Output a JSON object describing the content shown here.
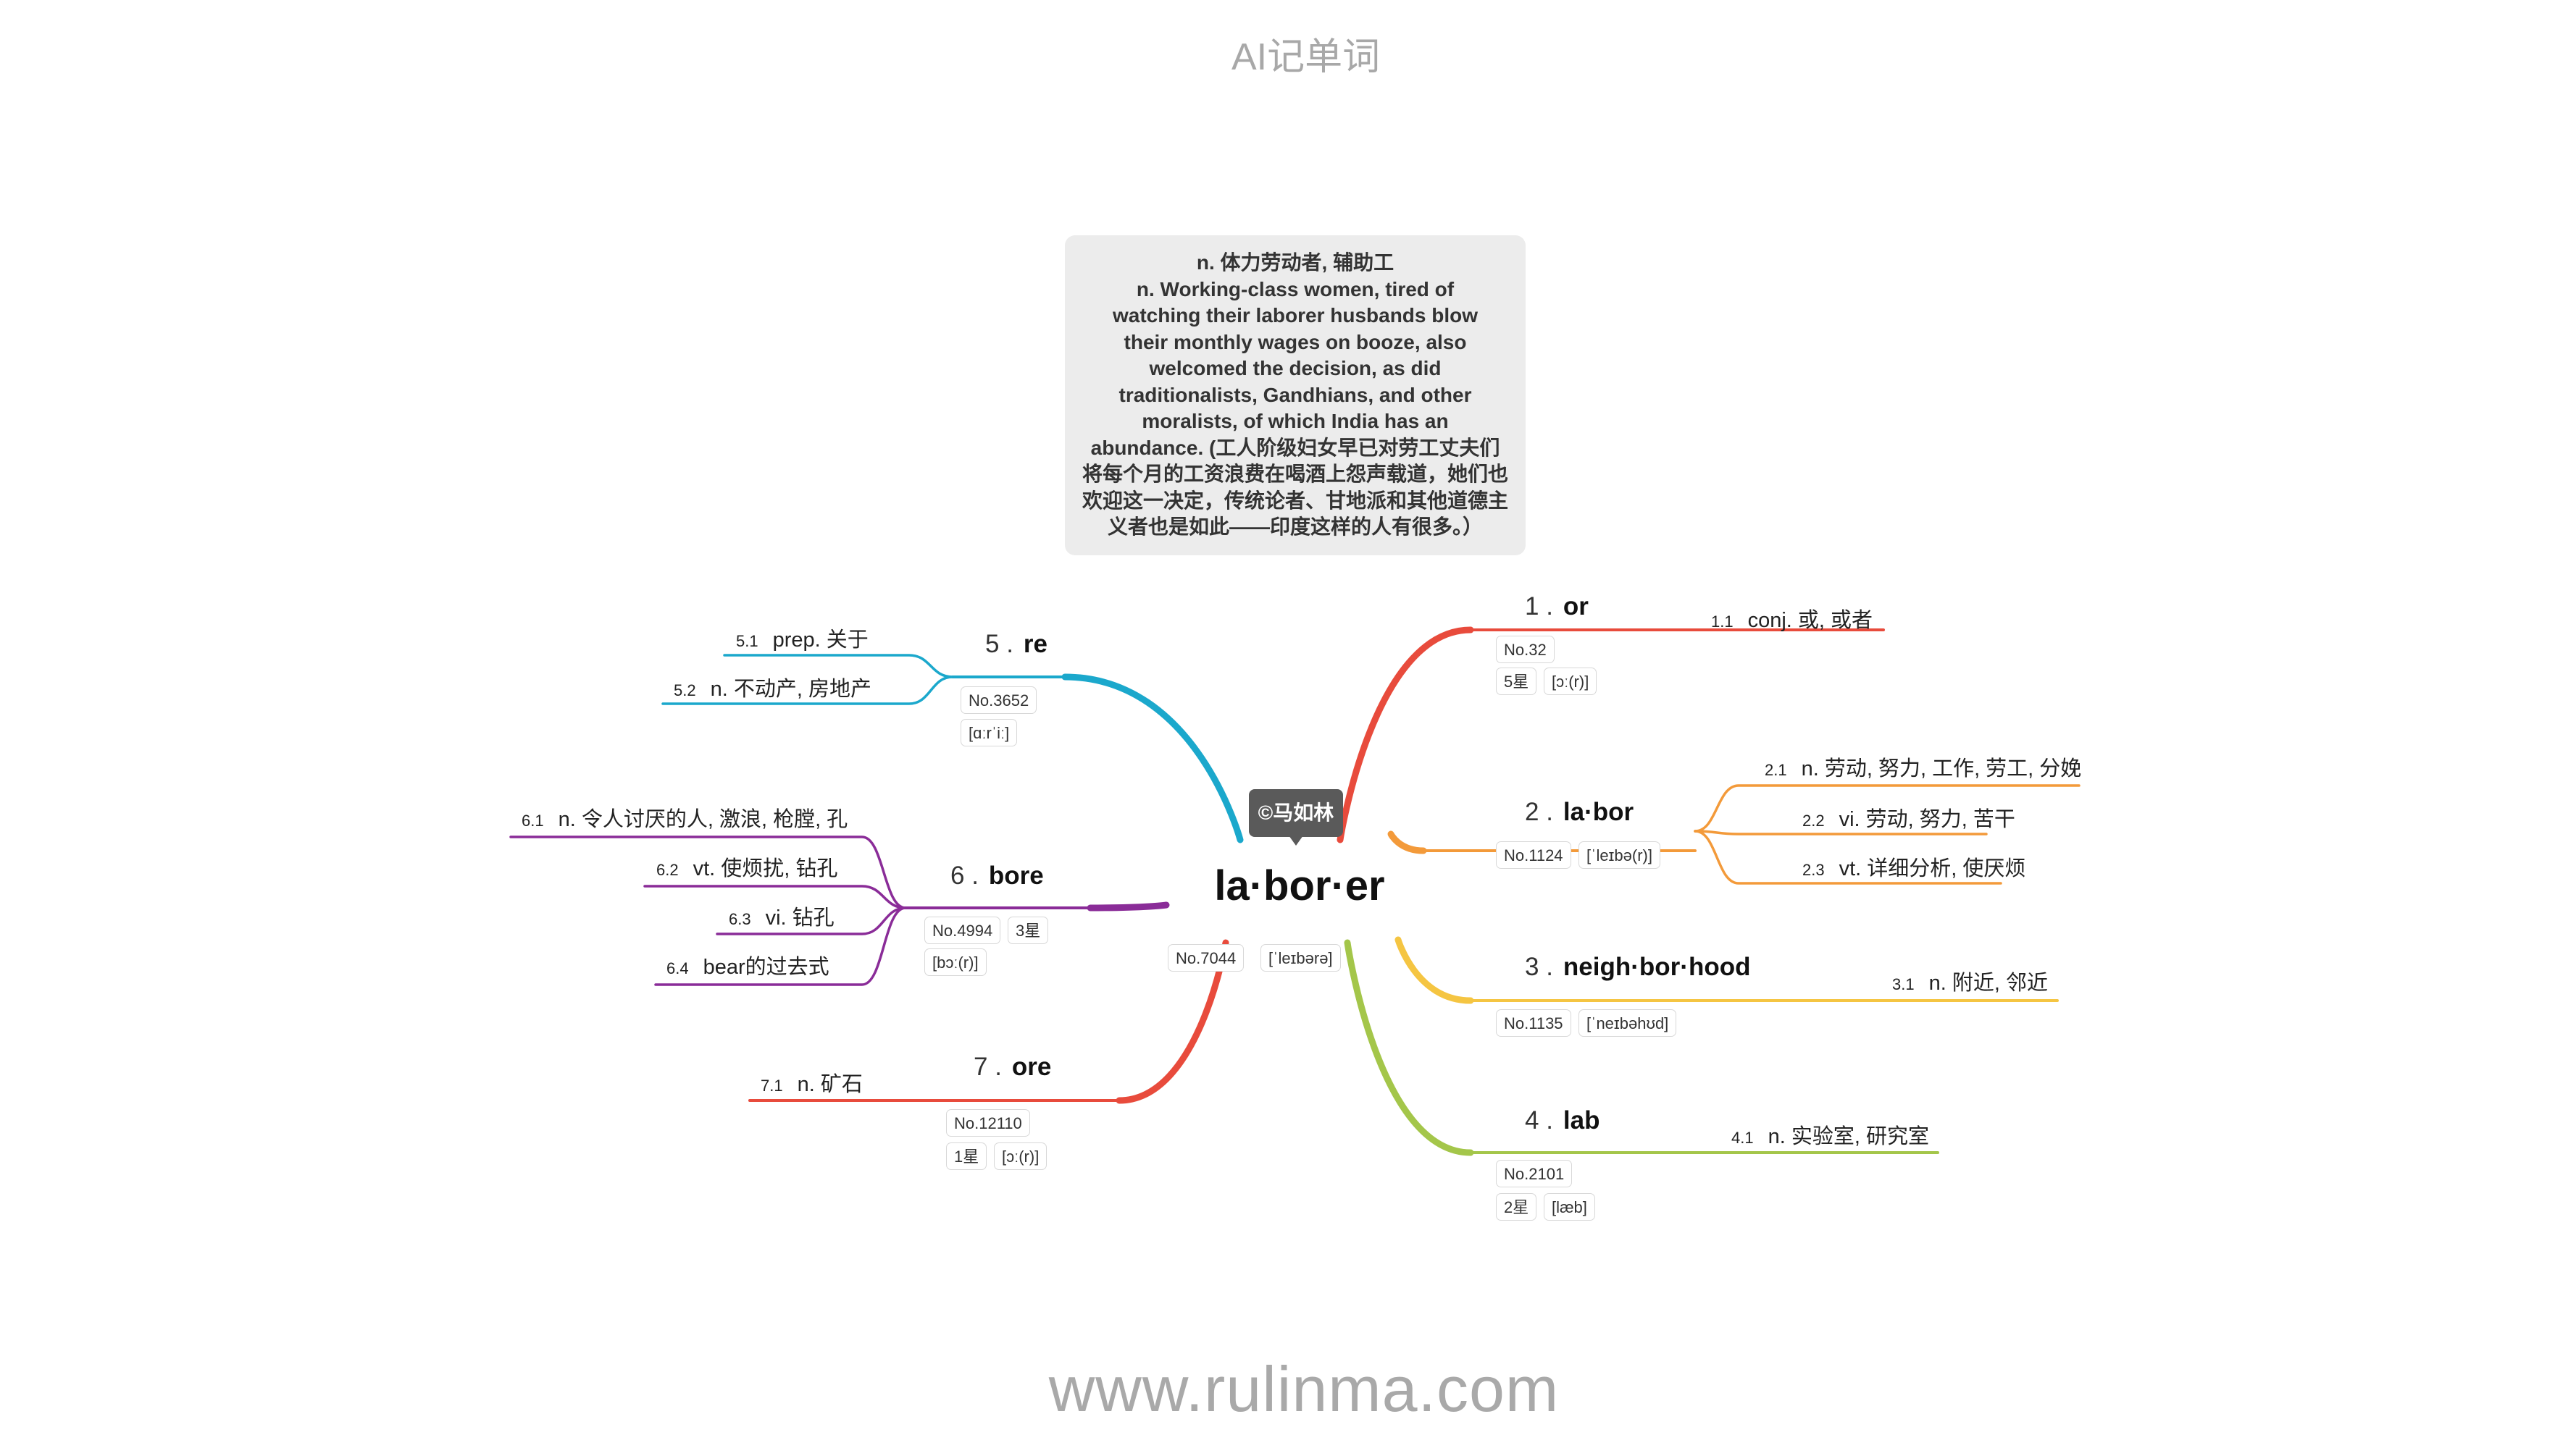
{
  "header": {
    "title": "AI记单词"
  },
  "footer": {
    "url": "www.rulinma.com"
  },
  "definition_box": {
    "lines": [
      "n. 体力劳动者, 辅助工",
      "n. Working-class women, tired of",
      "watching their laborer husbands blow",
      "their monthly wages on booze, also",
      "welcomed the decision, as did",
      "traditionalists, Gandhians, and other",
      "moralists, of which India has an",
      "abundance. (工人阶级妇女早已对劳工丈夫们",
      "将每个月的工资浪费在喝酒上怨声载道，她们也",
      "欢迎这一决定，传统论者、甘地派和其他道德主",
      "义者也是如此——印度这样的人有很多。）"
    ]
  },
  "center": {
    "word": "la·bor·er",
    "author": "©马如林",
    "tags": [
      "No.7044",
      "[ˈleɪbərə]"
    ]
  },
  "colors": {
    "or": "#e84b3c",
    "labor": "#f39a3a",
    "neighborhood": "#f5c542",
    "lab": "#a4c64a",
    "re": "#1ba8cc",
    "bore": "#8a2c98",
    "ore": "#e84b3c"
  },
  "branches": [
    {
      "id": "or",
      "num": "1 .",
      "word": "or",
      "tags_row1": [
        "No.32"
      ],
      "tags_row2": [
        "5星",
        "[ɔː(r)]"
      ],
      "senses": [
        {
          "num": "1.1",
          "text": "conj. 或, 或者"
        }
      ]
    },
    {
      "id": "labor",
      "num": "2 .",
      "word": "la·bor",
      "tags_row1": [
        "No.1124",
        "[ˈleɪbə(r)]"
      ],
      "tags_row2": [],
      "senses": [
        {
          "num": "2.1",
          "text": "n. 劳动, 努力, 工作, 劳工, 分娩"
        },
        {
          "num": "2.2",
          "text": "vi. 劳动, 努力, 苦干"
        },
        {
          "num": "2.3",
          "text": "vt. 详细分析, 使厌烦"
        }
      ]
    },
    {
      "id": "neighborhood",
      "num": "3 .",
      "word": "neigh·bor·hood",
      "tags_row1": [
        "No.1135",
        "[ˈneɪbəhʊd]"
      ],
      "tags_row2": [],
      "senses": [
        {
          "num": "3.1",
          "text": "n. 附近, 邻近"
        }
      ]
    },
    {
      "id": "lab",
      "num": "4 .",
      "word": "lab",
      "tags_row1": [
        "No.2101"
      ],
      "tags_row2": [
        "2星",
        "[læb]"
      ],
      "senses": [
        {
          "num": "4.1",
          "text": "n. 实验室, 研究室"
        }
      ]
    },
    {
      "id": "re",
      "num": "5 .",
      "word": "re",
      "tags_row1": [
        "No.3652"
      ],
      "tags_row2": [
        "[ɑːrˈiː]"
      ],
      "senses": [
        {
          "num": "5.1",
          "text": "prep. 关于"
        },
        {
          "num": "5.2",
          "text": "n. 不动产, 房地产"
        }
      ]
    },
    {
      "id": "bore",
      "num": "6 .",
      "word": "bore",
      "tags_row1": [
        "No.4994",
        "3星"
      ],
      "tags_row2": [
        "[bɔː(r)]"
      ],
      "senses": [
        {
          "num": "6.1",
          "text": "n. 令人讨厌的人, 激浪, 枪膛, 孔"
        },
        {
          "num": "6.2",
          "text": "vt. 使烦扰, 钻孔"
        },
        {
          "num": "6.3",
          "text": "vi. 钻孔"
        },
        {
          "num": "6.4",
          "text": "bear的过去式"
        }
      ]
    },
    {
      "id": "ore",
      "num": "7 .",
      "word": "ore",
      "tags_row1": [
        "No.12110"
      ],
      "tags_row2": [
        "1星",
        "[ɔː(r)]"
      ],
      "senses": [
        {
          "num": "7.1",
          "text": "n. 矿石"
        }
      ]
    }
  ]
}
